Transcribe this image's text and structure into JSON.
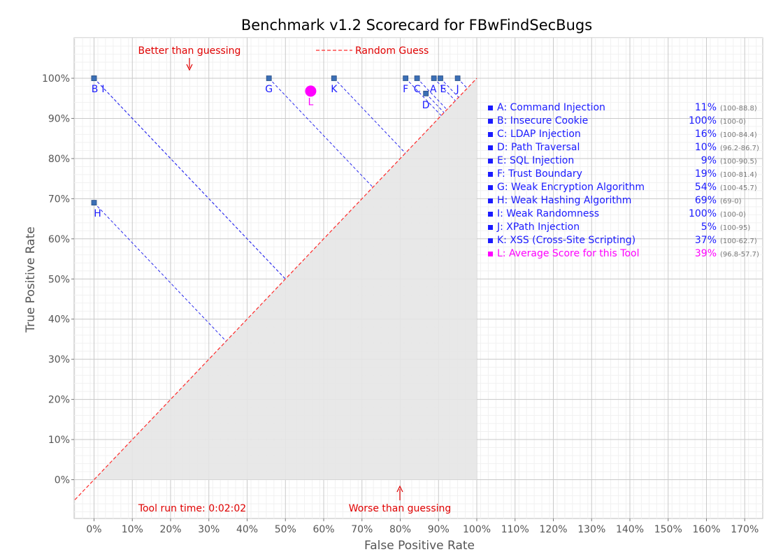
{
  "chart_data": {
    "type": "scatter",
    "title": "Benchmark v1.2 Scorecard for FBwFindSecBugs",
    "xlabel": "False Positive Rate",
    "ylabel": "True Positive Rate",
    "xlim": [
      -5,
      175
    ],
    "ylim": [
      -10,
      110
    ],
    "x_ticks": [
      "0%",
      "10%",
      "20%",
      "30%",
      "40%",
      "50%",
      "60%",
      "70%",
      "80%",
      "90%",
      "100%",
      "110%",
      "120%",
      "130%",
      "140%",
      "150%",
      "160%",
      "170%"
    ],
    "y_ticks": [
      "0%",
      "10%",
      "20%",
      "30%",
      "40%",
      "50%",
      "60%",
      "70%",
      "80%",
      "90%",
      "100%"
    ],
    "grid": true,
    "random_guess_label": "Random Guess",
    "annotations": {
      "better": "Better than guessing",
      "worse": "Worse than guessing",
      "runtime": "Tool run time: 0:02:02"
    },
    "colors": {
      "point": "#3b6fb5",
      "category_text": "#1a1aff",
      "average": "#ff00ff",
      "random_guess": "#ff2a2a",
      "shade": "#e6e6e6"
    },
    "points": [
      {
        "label": "A",
        "x": 88.8,
        "y": 100
      },
      {
        "label": "B",
        "x": 0,
        "y": 100
      },
      {
        "label": "C",
        "x": 84.4,
        "y": 100
      },
      {
        "label": "D",
        "x": 86.7,
        "y": 96.2
      },
      {
        "label": "E",
        "x": 90.5,
        "y": 100
      },
      {
        "label": "F",
        "x": 81.4,
        "y": 100
      },
      {
        "label": "G",
        "x": 45.7,
        "y": 100
      },
      {
        "label": "H",
        "x": 0,
        "y": 69
      },
      {
        "label": "I",
        "x": 0,
        "y": 100
      },
      {
        "label": "J",
        "x": 95,
        "y": 100
      },
      {
        "label": "K",
        "x": 62.7,
        "y": 100
      }
    ],
    "average_point": {
      "label": "L",
      "x": 57.7,
      "y": 96.8
    },
    "legend": [
      {
        "key": "A:",
        "name": "Command Injection",
        "score": "11%",
        "range": "(100-88.8)"
      },
      {
        "key": "B:",
        "name": "Insecure Cookie",
        "score": "100%",
        "range": "(100-0)"
      },
      {
        "key": "C:",
        "name": "LDAP Injection",
        "score": "16%",
        "range": "(100-84.4)"
      },
      {
        "key": "D:",
        "name": "Path Traversal",
        "score": "10%",
        "range": "(96.2-86.7)"
      },
      {
        "key": "E:",
        "name": "SQL Injection",
        "score": "9%",
        "range": "(100-90.5)"
      },
      {
        "key": "F:",
        "name": "Trust Boundary",
        "score": "19%",
        "range": "(100-81.4)"
      },
      {
        "key": "G:",
        "name": "Weak Encryption Algorithm",
        "score": "54%",
        "range": "(100-45.7)"
      },
      {
        "key": "H:",
        "name": "Weak Hashing Algorithm",
        "score": "69%",
        "range": "(69-0)"
      },
      {
        "key": "I:",
        "name": "Weak Randomness",
        "score": "100%",
        "range": "(100-0)"
      },
      {
        "key": "J:",
        "name": "XPath Injection",
        "score": "5%",
        "range": "(100-95)"
      },
      {
        "key": "K:",
        "name": "XSS (Cross-Site Scripting)",
        "score": "37%",
        "range": "(100-62.7)"
      },
      {
        "key": "L:",
        "name": "Average Score for this Tool",
        "score": "39%",
        "range": "(96.8-57.7)"
      }
    ]
  }
}
